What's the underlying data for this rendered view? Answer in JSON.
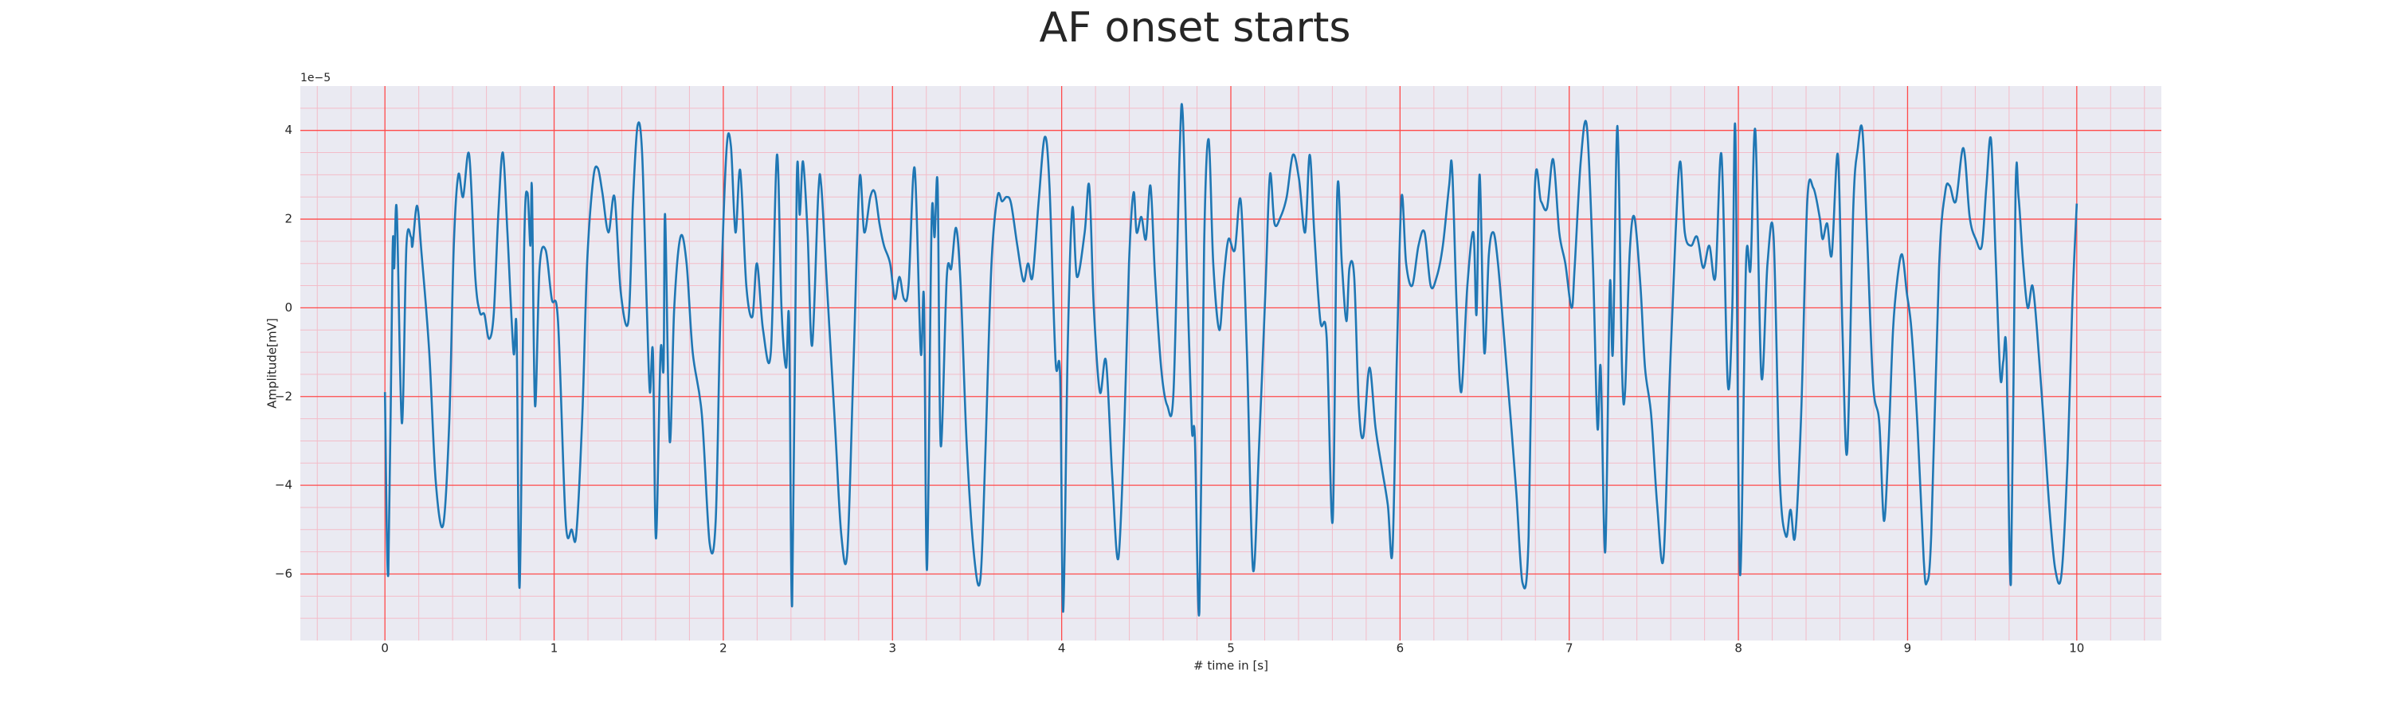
{
  "chart_data": {
    "type": "line",
    "title": "AF onset starts",
    "xlabel": "# time in [s]",
    "ylabel": "Amplitude[mV]",
    "y_offset_label": "1e−5",
    "xlim": [
      -0.5,
      10.5
    ],
    "ylim": [
      -7.5,
      5
    ],
    "xticks": [
      0,
      1,
      2,
      3,
      4,
      5,
      6,
      7,
      8,
      9,
      10
    ],
    "yticks": [
      {
        "value": -6,
        "label": "−6"
      },
      {
        "value": -4,
        "label": "−4"
      },
      {
        "value": -2,
        "label": "−2"
      },
      0,
      2,
      4
    ],
    "xminorticks": [
      -0.4,
      -0.2,
      0.2,
      0.4,
      0.6,
      0.8,
      1.2,
      1.4,
      1.6,
      1.8,
      2.2,
      2.4,
      2.6,
      2.8,
      3.2,
      3.4,
      3.6,
      3.8,
      4.2,
      4.4,
      4.6,
      4.8,
      5.2,
      5.4,
      5.6,
      5.8,
      6.2,
      6.4,
      6.6,
      6.8,
      7.2,
      7.4,
      7.6,
      7.8,
      8.2,
      8.4,
      8.6,
      8.8,
      9.2,
      9.4,
      9.6,
      9.8,
      10.2,
      10.4
    ],
    "yminorticks": [
      -7,
      -6.5,
      -5.5,
      -5,
      -4.5,
      -3.5,
      -3,
      -2.5,
      -1.5,
      -1,
      -0.5,
      0.5,
      1,
      1.5,
      2.5,
      3,
      3.5,
      4.5
    ],
    "grid": true,
    "grid_color": "#ff4a4a",
    "minor_grid_color": "#f3bcc8",
    "background": "#eaeaf2",
    "x": [
      0,
      0.02,
      0.045,
      0.055,
      0.07,
      0.1,
      0.127,
      0.154,
      0.163,
      0.19,
      0.217,
      0.262,
      0.3,
      0.344,
      0.38,
      0.407,
      0.434,
      0.462,
      0.498,
      0.534,
      0.561,
      0.588,
      0.615,
      0.643,
      0.67,
      0.697,
      0.724,
      0.76,
      0.778,
      0.796,
      0.823,
      0.842,
      0.86,
      0.869,
      0.887,
      0.914,
      0.95,
      0.986,
      1.023,
      1.068,
      1.104,
      1.131,
      1.167,
      1.195,
      1.231,
      1.258,
      1.285,
      1.321,
      1.357,
      1.394,
      1.439,
      1.466,
      1.493,
      1.52,
      1.548,
      1.566,
      1.584,
      1.602,
      1.629,
      1.647,
      1.656,
      1.683,
      1.71,
      1.747,
      1.783,
      1.819,
      1.873,
      1.919,
      1.955,
      1.982,
      2.018,
      2.045,
      2.072,
      2.1,
      2.136,
      2.172,
      2.199,
      2.235,
      2.281,
      2.317,
      2.344,
      2.371,
      2.389,
      2.407,
      2.434,
      2.452,
      2.471,
      2.498,
      2.525,
      2.561,
      2.579,
      2.615,
      2.661,
      2.697,
      2.733,
      2.769,
      2.805,
      2.833,
      2.869,
      2.896,
      2.923,
      2.95,
      2.986,
      3.014,
      3.041,
      3.068,
      3.095,
      3.131,
      3.167,
      3.186,
      3.204,
      3.231,
      3.249,
      3.267,
      3.285,
      3.321,
      3.348,
      3.376,
      3.403,
      3.439,
      3.484,
      3.52,
      3.548,
      3.584,
      3.62,
      3.648,
      3.675,
      3.701,
      3.738,
      3.774,
      3.801,
      3.828,
      3.864,
      3.9,
      3.928,
      3.964,
      3.991,
      4.009,
      4.036,
      4.063,
      4.09,
      4.136,
      4.163,
      4.19,
      4.226,
      4.262,
      4.299,
      4.335,
      4.371,
      4.398,
      4.425,
      4.443,
      4.471,
      4.498,
      4.525,
      4.552,
      4.588,
      4.624,
      4.661,
      4.697,
      4.715,
      4.742,
      4.769,
      4.787,
      4.814,
      4.842,
      4.869,
      4.896,
      4.932,
      4.959,
      4.986,
      5.023,
      5.059,
      5.095,
      5.131,
      5.167,
      5.204,
      5.231,
      5.258,
      5.294,
      5.33,
      5.367,
      5.403,
      5.439,
      5.466,
      5.493,
      5.529,
      5.566,
      5.602,
      5.629,
      5.656,
      5.683,
      5.701,
      5.729,
      5.756,
      5.783,
      5.819,
      5.855,
      5.892,
      5.928,
      5.955,
      5.982,
      6.009,
      6.036,
      6.072,
      6.109,
      6.145,
      6.181,
      6.217,
      6.253,
      6.29,
      6.308,
      6.335,
      6.362,
      6.398,
      6.434,
      6.452,
      6.471,
      6.498,
      6.525,
      6.552,
      6.579,
      6.615,
      6.652,
      6.688,
      6.724,
      6.76,
      6.796,
      6.833,
      6.869,
      6.905,
      6.941,
      6.977,
      7.014,
      7.032,
      7.068,
      7.104,
      7.14,
      7.167,
      7.186,
      7.213,
      7.24,
      7.258,
      7.285,
      7.312,
      7.33,
      7.357,
      7.385,
      7.421,
      7.448,
      7.484,
      7.52,
      7.557,
      7.593,
      7.629,
      7.656,
      7.683,
      7.72,
      7.756,
      7.792,
      7.828,
      7.864,
      7.9,
      7.937,
      7.964,
      7.982,
      8.009,
      8.045,
      8.072,
      8.1,
      8.136,
      8.172,
      8.208,
      8.244,
      8.281,
      8.308,
      8.335,
      8.371,
      8.407,
      8.443,
      8.48,
      8.498,
      8.525,
      8.552,
      8.588,
      8.615,
      8.643,
      8.679,
      8.706,
      8.733,
      8.76,
      8.796,
      8.833,
      8.86,
      8.887,
      8.914,
      8.941,
      8.968,
      8.995,
      9.023,
      9.059,
      9.095,
      9.113,
      9.14,
      9.186,
      9.222,
      9.249,
      9.285,
      9.33,
      9.367,
      9.403,
      9.439,
      9.466,
      9.493,
      9.52,
      9.548,
      9.566,
      9.584,
      9.611,
      9.638,
      9.656,
      9.683,
      9.71,
      9.738,
      9.765,
      9.801,
      9.837,
      9.873,
      9.91,
      9.946,
      9.973,
      10.0
    ],
    "series": [
      {
        "color": "#1f77b4",
        "values": [
          -1.9,
          -6.0,
          1.2,
          0.9,
          2.2,
          -2.6,
          1.4,
          1.6,
          1.4,
          2.3,
          1.2,
          -1.0,
          -3.9,
          -4.9,
          -2.6,
          1.4,
          3.0,
          2.5,
          3.45,
          0.7,
          -0.1,
          -0.15,
          -0.7,
          -0.15,
          2.1,
          3.5,
          1.7,
          -1.0,
          -0.5,
          -6.3,
          1.4,
          2.6,
          1.4,
          2.7,
          -2.2,
          0.9,
          1.3,
          0.2,
          -0.3,
          -4.8,
          -5.0,
          -5.1,
          -2.4,
          1.0,
          2.9,
          3.15,
          2.6,
          1.7,
          2.5,
          0.35,
          -0.3,
          2.4,
          4.1,
          3.5,
          0.0,
          -1.9,
          -1.0,
          -5.2,
          -1.0,
          -1.35,
          2.1,
          -3.0,
          0.0,
          1.6,
          1.0,
          -1.0,
          -2.4,
          -5.3,
          -4.8,
          -0.3,
          3.5,
          3.65,
          1.7,
          3.1,
          0.5,
          -0.2,
          1.0,
          -0.5,
          -1.0,
          3.45,
          0.0,
          -1.35,
          -0.3,
          -6.7,
          2.8,
          2.1,
          3.3,
          1.7,
          -0.85,
          2.55,
          2.75,
          0.35,
          -2.7,
          -5.1,
          -5.5,
          -1.35,
          2.9,
          1.7,
          2.5,
          2.6,
          1.9,
          1.4,
          1.0,
          0.2,
          0.7,
          0.2,
          0.5,
          3.15,
          -1.0,
          0.2,
          -5.9,
          1.9,
          1.6,
          2.75,
          -3.1,
          0.7,
          0.9,
          1.8,
          0.5,
          -3.1,
          -5.65,
          -6.1,
          -3.4,
          0.9,
          2.5,
          2.4,
          2.5,
          2.35,
          1.4,
          0.6,
          1.0,
          0.7,
          2.4,
          3.85,
          2.75,
          -1.2,
          -1.55,
          -6.85,
          -0.85,
          2.25,
          0.7,
          1.7,
          2.75,
          0.0,
          -1.9,
          -1.2,
          -3.8,
          -5.65,
          -2.6,
          1.0,
          2.6,
          1.7,
          2.05,
          1.55,
          2.75,
          0.7,
          -1.35,
          -2.2,
          -1.9,
          3.45,
          4.4,
          0.7,
          -2.7,
          -2.9,
          -6.85,
          1.4,
          3.8,
          1.0,
          -0.5,
          0.7,
          1.55,
          1.3,
          2.4,
          -1.0,
          -5.9,
          -3.1,
          0.35,
          3.0,
          1.9,
          2.05,
          2.5,
          3.45,
          2.9,
          1.7,
          3.45,
          1.7,
          -0.3,
          -0.65,
          -4.8,
          2.6,
          1.0,
          -0.3,
          0.9,
          0.7,
          -2.2,
          -2.9,
          -1.35,
          -2.7,
          -3.6,
          -4.45,
          -5.5,
          -1.0,
          2.5,
          1.0,
          0.5,
          1.4,
          1.7,
          0.5,
          0.7,
          1.4,
          2.75,
          3.15,
          0.0,
          -1.9,
          0.5,
          1.7,
          -0.15,
          3.0,
          -1.0,
          1.2,
          1.7,
          1.0,
          -0.65,
          -2.4,
          -4.2,
          -6.2,
          -5.15,
          2.6,
          2.4,
          2.25,
          3.35,
          1.7,
          1.0,
          0.0,
          0.9,
          3.3,
          4.1,
          1.0,
          -2.7,
          -1.35,
          -5.5,
          0.5,
          -1.0,
          4.1,
          -1.35,
          -1.9,
          1.2,
          2.05,
          0.5,
          -1.35,
          -2.4,
          -4.45,
          -5.65,
          -1.7,
          1.7,
          3.3,
          1.7,
          1.4,
          1.6,
          0.9,
          1.4,
          0.7,
          3.45,
          -1.7,
          0.0,
          4.0,
          -6.0,
          1.0,
          0.9,
          4.0,
          -1.55,
          1.0,
          1.6,
          -3.8,
          -5.15,
          -4.55,
          -5.15,
          -2.4,
          2.4,
          2.7,
          2.05,
          1.55,
          1.9,
          1.2,
          3.45,
          -0.5,
          -3.25,
          2.25,
          3.6,
          4.0,
          1.7,
          -1.7,
          -2.6,
          -4.8,
          -3.1,
          -0.5,
          0.7,
          1.2,
          0.35,
          -0.5,
          -2.7,
          -5.65,
          -6.2,
          -5.1,
          0.9,
          2.6,
          2.75,
          2.4,
          3.6,
          2.05,
          1.55,
          1.4,
          2.75,
          3.8,
          1.2,
          -1.55,
          -1.2,
          -1.0,
          -6.2,
          2.6,
          2.5,
          1.0,
          0.0,
          0.5,
          -0.5,
          -2.4,
          -4.45,
          -5.9,
          -6.0,
          -3.4,
          0.0,
          2.35
        ]
      }
    ]
  }
}
